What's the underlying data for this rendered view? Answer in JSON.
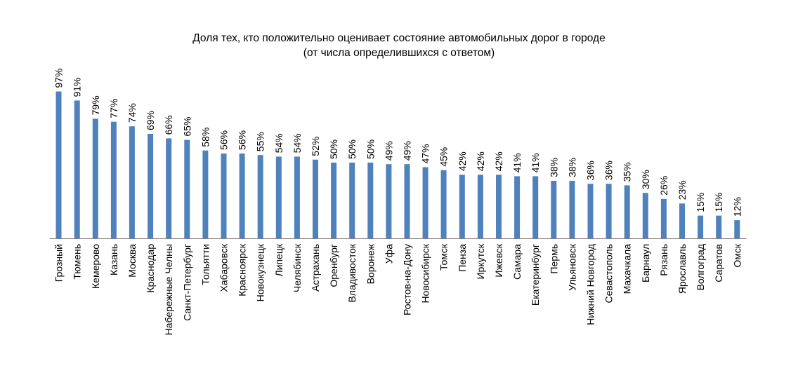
{
  "chart_data": {
    "type": "bar",
    "title": "Доля тех, кто положительно оценивает состояние автомобильных дорог в городе",
    "subtitle": "(от числа определившихся с ответом)",
    "xlabel": "",
    "ylabel": "",
    "unit": "%",
    "ylim": [
      0,
      100
    ],
    "grid": false,
    "legend": "none",
    "bar_color": "#4f81bd",
    "categories": [
      "Грозный",
      "Тюмень",
      "Кемерово",
      "Казань",
      "Москва",
      "Краснодар",
      "Набережные Челны",
      "Санкт-Петербург",
      "Тольятти",
      "Хабаровск",
      "Красноярск",
      "Новокузнецк",
      "Липецк",
      "Челябинск",
      "Астрахань",
      "Оренбург",
      "Владивосток",
      "Воронеж",
      "Уфа",
      "Ростов-на-Дону",
      "Новосибирск",
      "Томск",
      "Пенза",
      "Иркутск",
      "Ижевск",
      "Самара",
      "Екатеринбург",
      "Пермь",
      "Ульяновск",
      "Нижний Новгород",
      "Севастополь",
      "Махачкала",
      "Барнаул",
      "Рязань",
      "Ярославль",
      "Волгоград",
      "Саратов",
      "Омск"
    ],
    "values": [
      97,
      91,
      79,
      77,
      74,
      69,
      66,
      65,
      58,
      56,
      56,
      55,
      54,
      54,
      52,
      50,
      50,
      50,
      49,
      49,
      47,
      45,
      42,
      42,
      42,
      41,
      41,
      38,
      38,
      36,
      36,
      35,
      30,
      26,
      23,
      15,
      15,
      12
    ],
    "data_labels": [
      "97%",
      "91%",
      "79%",
      "77%",
      "74%",
      "69%",
      "66%",
      "65%",
      "58%",
      "56%",
      "56%",
      "55%",
      "54%",
      "54%",
      "52%",
      "50%",
      "50%",
      "50%",
      "49%",
      "49%",
      "47%",
      "45%",
      "42%",
      "42%",
      "42%",
      "41%",
      "41%",
      "38%",
      "38%",
      "36%",
      "36%",
      "35%",
      "30%",
      "26%",
      "23%",
      "15%",
      "15%",
      "12%"
    ]
  }
}
